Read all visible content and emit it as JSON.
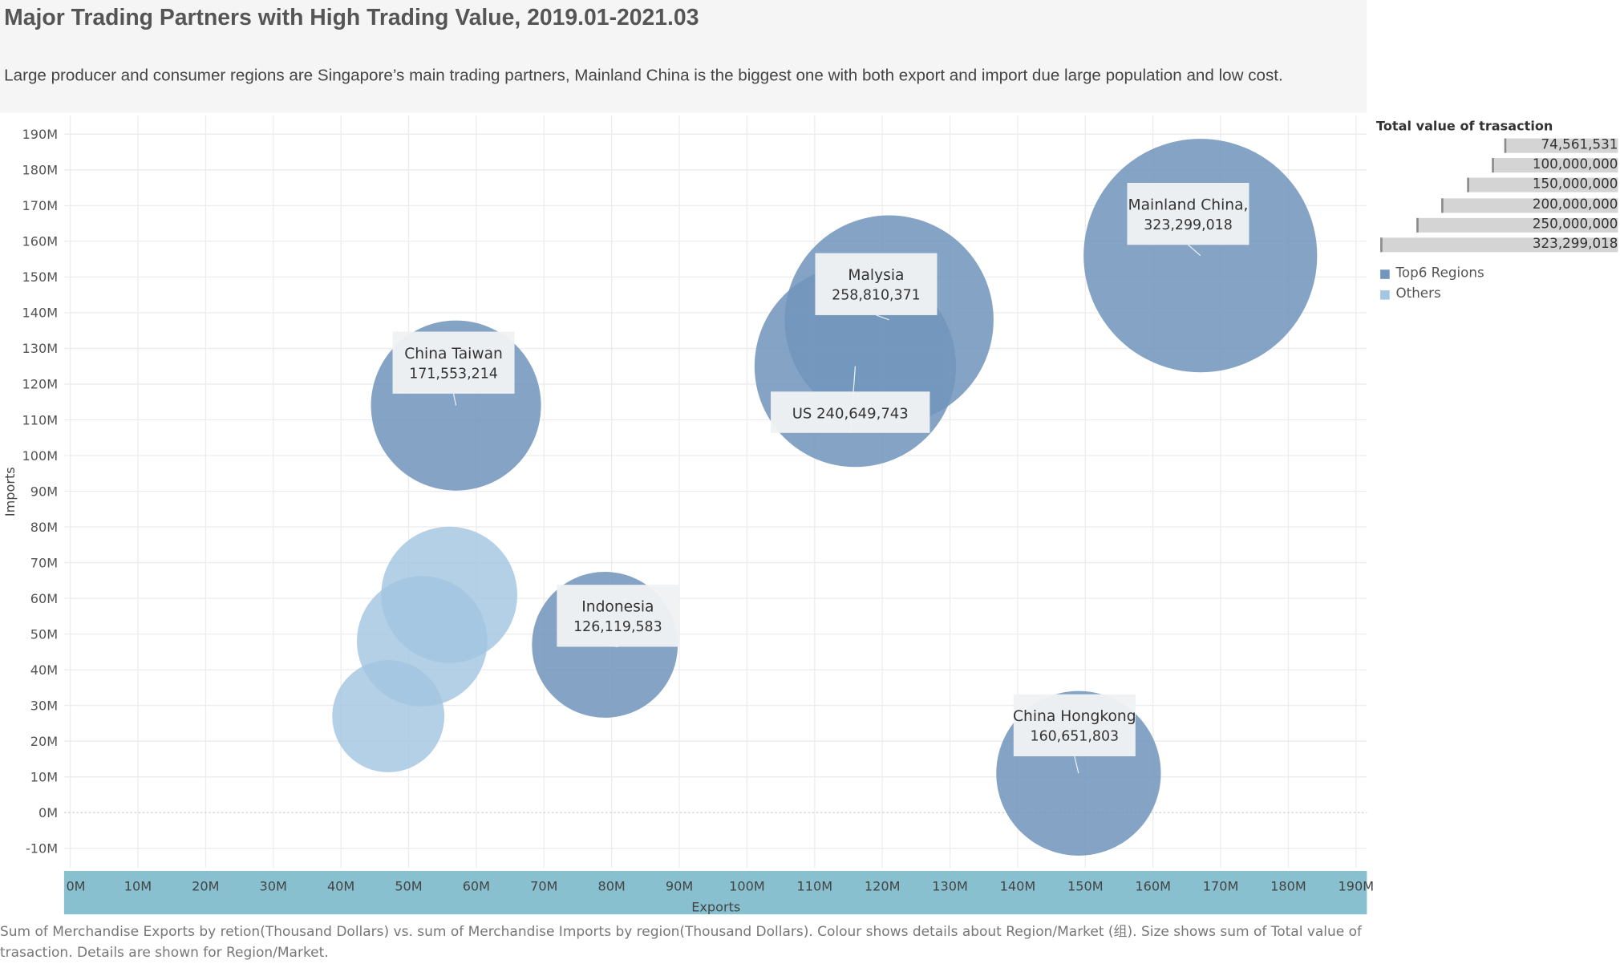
{
  "header": {
    "title": "Major Trading Partners with High Trading Value, 2019.01-2021.03",
    "subtitle": "Large producer and consumer regions are Singapore’s main trading partners, Mainland China is the biggest one with both export and import due large population and low cost."
  },
  "footnote": "Sum of Merchandise Exports by retion(Thousand Dollars) vs. sum of Merchandise Imports by region(Thousand Dollars).  Colour shows details about Region/Market (组).  Size shows sum of Total value of trasaction.  Details are shown for Region/Market.",
  "legend": {
    "size_title": "Total value of trasaction",
    "size_items": [
      "74,561,531",
      "100,000,000",
      "150,000,000",
      "200,000,000",
      "250,000,000",
      "323,299,018"
    ],
    "size_values": [
      74561531,
      100000000,
      150000000,
      200000000,
      250000000,
      323299018
    ],
    "color_items": [
      {
        "label": "Top6 Regions",
        "color": "#7396bd"
      },
      {
        "label": "Others",
        "color": "#a3c6e2"
      }
    ]
  },
  "chart_data": {
    "type": "scatter",
    "subtype": "bubble",
    "xlabel": "Exports",
    "ylabel": "Imports",
    "xlim": [
      -1,
      193
    ],
    "ylim": [
      -15,
      194
    ],
    "x_ticks": [
      0,
      10,
      20,
      30,
      40,
      50,
      60,
      70,
      80,
      90,
      100,
      110,
      120,
      130,
      140,
      150,
      160,
      170,
      180,
      190
    ],
    "x_tick_labels": [
      "0M",
      "10M",
      "20M",
      "30M",
      "40M",
      "50M",
      "60M",
      "70M",
      "80M",
      "90M",
      "100M",
      "110M",
      "120M",
      "130M",
      "140M",
      "150M",
      "160M",
      "170M",
      "180M",
      "190M"
    ],
    "y_ticks": [
      -10,
      0,
      10,
      20,
      30,
      40,
      50,
      60,
      70,
      80,
      90,
      100,
      110,
      120,
      130,
      140,
      150,
      160,
      170,
      180,
      190
    ],
    "y_tick_labels": [
      "-10M",
      "0M",
      "10M",
      "20M",
      "30M",
      "40M",
      "50M",
      "60M",
      "70M",
      "80M",
      "90M",
      "100M",
      "110M",
      "120M",
      "130M",
      "140M",
      "150M",
      "160M",
      "170M",
      "180M",
      "190M"
    ],
    "grid": true,
    "series": [
      {
        "name": "Top6 Regions",
        "color": "#7396bd",
        "points": [
          {
            "label": "Mainland China,",
            "value_text": "323,299,018",
            "x": 167,
            "y": 156,
            "size": 323299018
          },
          {
            "label": "Malysia",
            "value_text": "258,810,371",
            "x": 121,
            "y": 138,
            "size": 258810371
          },
          {
            "label": "US",
            "value_text": "240,649,743",
            "x": 116,
            "y": 125,
            "size": 240649743
          },
          {
            "label": "China Taiwan",
            "value_text": "171,553,214",
            "x": 57,
            "y": 114,
            "size": 171553214
          },
          {
            "label": "China Hongkong",
            "value_text": "160,651,803",
            "x": 149,
            "y": 11,
            "size": 160651803
          },
          {
            "label": "Indonesia",
            "value_text": "126,119,583",
            "x": 79,
            "y": 47,
            "size": 126119583
          }
        ]
      },
      {
        "name": "Others",
        "color": "#a3c6e2",
        "points": [
          {
            "x": 56,
            "y": 61,
            "size": 110000000
          },
          {
            "x": 52,
            "y": 48,
            "size": 101000000
          },
          {
            "x": 47,
            "y": 27,
            "size": 74561531
          }
        ]
      }
    ]
  }
}
